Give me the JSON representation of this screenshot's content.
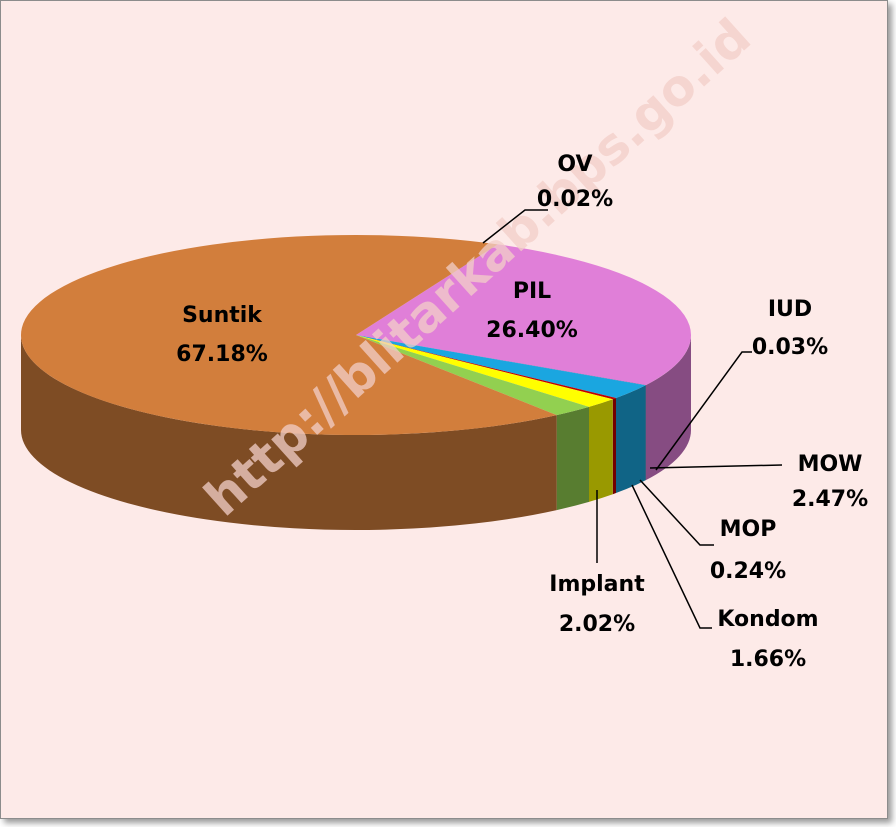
{
  "chart_data": {
    "type": "pie",
    "watermark": "http://blitarkab.bps.go.id",
    "categories": [
      "OV",
      "PIL",
      "IUD",
      "MOW",
      "MOP",
      "Kondom",
      "Implant",
      "Suntik"
    ],
    "values": [
      0.02,
      26.4,
      0.03,
      2.47,
      0.24,
      1.66,
      2.02,
      67.18
    ],
    "value_labels": [
      "0.02%",
      "26.40%",
      "0.03%",
      "2.47%",
      "0.24%",
      "1.66%",
      "2.02%",
      "67.18%"
    ],
    "colors": [
      "#7030a0",
      "#e07fd8",
      "#1f497d",
      "#1aa6e0",
      "#c00000",
      "#ffff00",
      "#92d050",
      "#d27e3c"
    ]
  }
}
